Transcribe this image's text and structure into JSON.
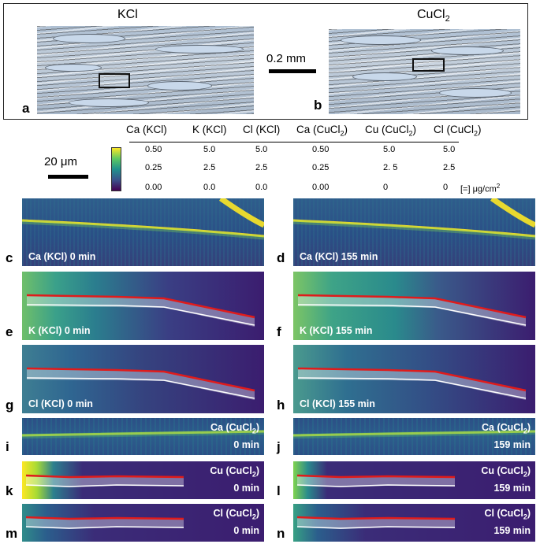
{
  "top": {
    "left_title": "KCl",
    "right_title_base": "CuCl",
    "right_title_sub": "2",
    "scale": "0.2 mm",
    "panel_a": "a",
    "panel_b": "b"
  },
  "scale_um": "20 μm",
  "table": {
    "headers": [
      {
        "base": "Ca (KCl)",
        "sub": "",
        "tail": ""
      },
      {
        "base": "K (KCl)",
        "sub": "",
        "tail": ""
      },
      {
        "base": "Cl (KCl)",
        "sub": "",
        "tail": ""
      },
      {
        "base": "Ca (CuCl",
        "sub": "2",
        "tail": ")"
      },
      {
        "base": "Cu (CuCl",
        "sub": "2",
        "tail": ")"
      },
      {
        "base": "Cl (CuCl",
        "sub": "2",
        "tail": ")"
      }
    ],
    "rows": [
      [
        "0.50",
        "5.0",
        "5.0",
        "0.50",
        "5.0",
        "5.0"
      ],
      [
        "0.25",
        "2.5",
        "2.5",
        "0.25",
        "2. 5",
        "2.5"
      ],
      [
        "0.00",
        "0.0",
        "0.0",
        "0.00",
        "0",
        "0"
      ]
    ],
    "unit": "[=] μg/cm",
    "unit_sup": "2"
  },
  "panels": {
    "c": {
      "letter": "c",
      "label": "Ca (KCl) 0 min"
    },
    "d": {
      "letter": "d",
      "label": "Ca (KCl) 155 min"
    },
    "e": {
      "letter": "e",
      "label": "K (KCl) 0 min"
    },
    "f": {
      "letter": "f",
      "label": "K (KCl) 155 min"
    },
    "g": {
      "letter": "g",
      "label": "Cl (KCl) 0 min"
    },
    "h": {
      "letter": "h",
      "label": "Cl (KCl) 155 min"
    },
    "i": {
      "letter": "i",
      "l1": "Ca (CuCl",
      "sub": "2",
      "tail": ")",
      "l2": "0 min"
    },
    "j": {
      "letter": "j",
      "l1": "Ca (CuCl",
      "sub": "2",
      "tail": ")",
      "l2": "159 min"
    },
    "k": {
      "letter": "k",
      "l1": "Cu (CuCl",
      "sub": "2",
      "tail": ")",
      "l2": "0 min"
    },
    "l": {
      "letter": "l",
      "l1": "Cu (CuCl",
      "sub": "2",
      "tail": ")",
      "l2": "159 min"
    },
    "m": {
      "letter": "m",
      "l1": "Cl (CuCl",
      "sub": "2",
      "tail": ")",
      "l2": "0 min"
    },
    "n": {
      "letter": "n",
      "l1": "Cl (CuCl",
      "sub": "2",
      "tail": ")",
      "l2": "159 min"
    }
  },
  "colors": {
    "viridis_low": "#3b1d6f",
    "viridis_mid": "#21918c",
    "viridis_high": "#fde725",
    "trace_red": "#e01b1b",
    "trace_white": "#ffffff"
  }
}
